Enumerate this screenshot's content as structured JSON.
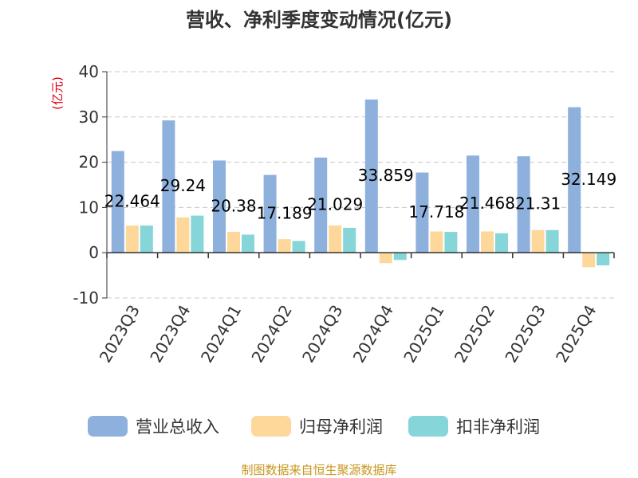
{
  "chart_data": {
    "type": "bar",
    "title": "营收、净利季度变动情况(亿元)",
    "ylabel": "(亿元)",
    "xlabel": "",
    "ylim": [
      -10,
      40
    ],
    "yticks": [
      -10,
      0,
      10,
      20,
      30,
      40
    ],
    "grid": true,
    "legend_position": "bottom",
    "categories": [
      "2023Q3",
      "2023Q4",
      "2024Q1",
      "2024Q2",
      "2024Q3",
      "2024Q4",
      "2025Q1",
      "2025Q2",
      "2025Q3",
      "2025Q4"
    ],
    "series": [
      {
        "name": "营业总收入",
        "color": "#8eb0dc",
        "values": [
          22.464,
          29.24,
          20.38,
          17.189,
          21.029,
          33.859,
          17.718,
          21.468,
          21.31,
          32.149
        ],
        "labels": [
          "22.464",
          "29.24",
          "20.38",
          "17.189",
          "21.029",
          "33.859",
          "17.718",
          "21.468",
          "21.31",
          "32.149"
        ]
      },
      {
        "name": "归母净利润",
        "color": "#fdd89a",
        "values": [
          6.0,
          7.8,
          4.6,
          3.0,
          6.0,
          -2.3,
          4.7,
          4.7,
          5.0,
          -3.2
        ]
      },
      {
        "name": "扣非净利润",
        "color": "#86d5d8",
        "values": [
          6.0,
          8.2,
          4.0,
          2.6,
          5.5,
          -1.6,
          4.6,
          4.3,
          5.0,
          -2.8
        ]
      }
    ]
  },
  "footer": {
    "source": "制图数据来自恒生聚源数据库"
  },
  "colors": {
    "title": "#333333",
    "axis_text": "#333333",
    "ylabel": "#e0000d",
    "grid": "#c8c8c8",
    "footer": "#c8961e"
  }
}
